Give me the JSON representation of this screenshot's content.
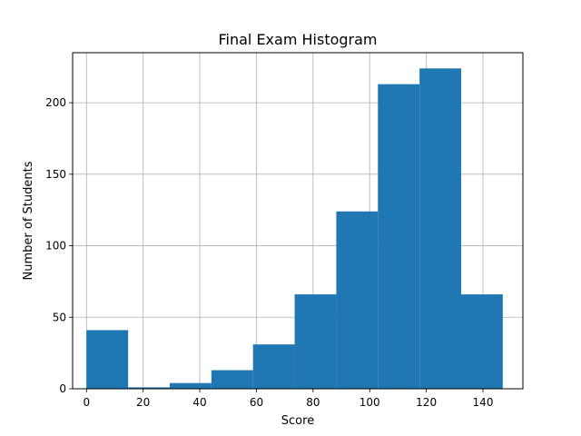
{
  "chart_data": {
    "type": "bar",
    "title": "Final Exam Histogram",
    "xlabel": "Score",
    "ylabel": "Number of Students",
    "xlim": [
      -4.9,
      154.1
    ],
    "ylim": [
      0,
      235
    ],
    "x_ticks": [
      0,
      20,
      40,
      60,
      80,
      100,
      120,
      140
    ],
    "y_ticks": [
      0,
      50,
      100,
      150,
      200
    ],
    "grid": true,
    "bar_color": "#1f77b4",
    "bins": [
      {
        "start": 0.0,
        "end": 14.7,
        "value": 41
      },
      {
        "start": 14.7,
        "end": 29.4,
        "value": 1
      },
      {
        "start": 29.4,
        "end": 44.1,
        "value": 4
      },
      {
        "start": 44.1,
        "end": 58.8,
        "value": 13
      },
      {
        "start": 58.8,
        "end": 73.5,
        "value": 31
      },
      {
        "start": 73.5,
        "end": 88.2,
        "value": 66
      },
      {
        "start": 88.2,
        "end": 102.9,
        "value": 124
      },
      {
        "start": 102.9,
        "end": 117.6,
        "value": 213
      },
      {
        "start": 117.6,
        "end": 132.3,
        "value": 224
      },
      {
        "start": 132.3,
        "end": 147.0,
        "value": 66
      }
    ]
  }
}
